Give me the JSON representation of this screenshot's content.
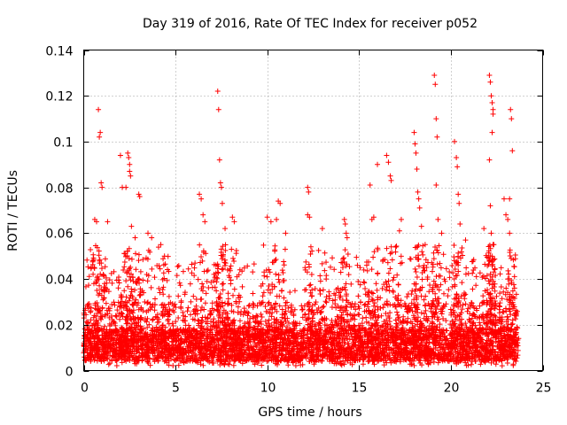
{
  "chart_data": {
    "type": "scatter",
    "title": "Day 319 of 2016, Rate Of TEC Index for receiver p052",
    "xlabel": "GPS time / hours",
    "ylabel": "ROTI / TECUs",
    "xlim": [
      0,
      25
    ],
    "ylim": [
      0,
      0.14
    ],
    "xticks": [
      0,
      5,
      10,
      15,
      20,
      25
    ],
    "xtick_labels": [
      "0",
      "5",
      "10",
      "15",
      "20",
      "25"
    ],
    "yticks": [
      0,
      0.02,
      0.04,
      0.06,
      0.08,
      0.1,
      0.12,
      0.14
    ],
    "ytick_labels": [
      "0",
      "0.02",
      "0.04",
      "0.06",
      "0.08",
      "0.1",
      "0.12",
      "0.14"
    ],
    "grid": true,
    "marker": "+",
    "color": "#ff0000",
    "series": [
      {
        "name": "p052",
        "points": [
          [
            0.6,
            0.066
          ],
          [
            0.7,
            0.065
          ],
          [
            0.8,
            0.114
          ],
          [
            0.85,
            0.102
          ],
          [
            0.9,
            0.104
          ],
          [
            0.95,
            0.082
          ],
          [
            1.0,
            0.08
          ],
          [
            1.3,
            0.065
          ],
          [
            2.0,
            0.094
          ],
          [
            2.1,
            0.08
          ],
          [
            2.3,
            0.08
          ],
          [
            2.4,
            0.095
          ],
          [
            2.45,
            0.093
          ],
          [
            2.5,
            0.09
          ],
          [
            2.5,
            0.087
          ],
          [
            2.55,
            0.085
          ],
          [
            2.6,
            0.063
          ],
          [
            2.8,
            0.058
          ],
          [
            3.0,
            0.077
          ],
          [
            3.05,
            0.076
          ],
          [
            3.5,
            0.06
          ],
          [
            3.7,
            0.058
          ],
          [
            4.2,
            0.055
          ],
          [
            4.4,
            0.05
          ],
          [
            6.3,
            0.077
          ],
          [
            6.4,
            0.075
          ],
          [
            6.5,
            0.068
          ],
          [
            6.6,
            0.065
          ],
          [
            7.3,
            0.122
          ],
          [
            7.35,
            0.114
          ],
          [
            7.4,
            0.092
          ],
          [
            7.45,
            0.082
          ],
          [
            7.5,
            0.08
          ],
          [
            7.55,
            0.073
          ],
          [
            7.7,
            0.062
          ],
          [
            8.1,
            0.067
          ],
          [
            8.2,
            0.065
          ],
          [
            10.0,
            0.067
          ],
          [
            10.2,
            0.065
          ],
          [
            10.5,
            0.066
          ],
          [
            10.6,
            0.074
          ],
          [
            10.7,
            0.073
          ],
          [
            11.0,
            0.06
          ],
          [
            12.2,
            0.08
          ],
          [
            12.25,
            0.078
          ],
          [
            12.2,
            0.068
          ],
          [
            12.3,
            0.067
          ],
          [
            13.0,
            0.062
          ],
          [
            14.2,
            0.066
          ],
          [
            14.25,
            0.064
          ],
          [
            14.3,
            0.06
          ],
          [
            14.35,
            0.058
          ],
          [
            15.6,
            0.081
          ],
          [
            15.7,
            0.066
          ],
          [
            15.8,
            0.067
          ],
          [
            16.0,
            0.09
          ],
          [
            16.5,
            0.094
          ],
          [
            16.6,
            0.091
          ],
          [
            16.7,
            0.085
          ],
          [
            16.75,
            0.083
          ],
          [
            17.2,
            0.061
          ],
          [
            17.3,
            0.066
          ],
          [
            18.0,
            0.104
          ],
          [
            18.05,
            0.099
          ],
          [
            18.1,
            0.095
          ],
          [
            18.15,
            0.088
          ],
          [
            18.2,
            0.078
          ],
          [
            18.25,
            0.075
          ],
          [
            18.3,
            0.071
          ],
          [
            18.4,
            0.063
          ],
          [
            18.6,
            0.055
          ],
          [
            19.1,
            0.129
          ],
          [
            19.15,
            0.125
          ],
          [
            19.2,
            0.11
          ],
          [
            19.25,
            0.102
          ],
          [
            19.2,
            0.081
          ],
          [
            19.3,
            0.066
          ],
          [
            19.5,
            0.06
          ],
          [
            20.2,
            0.1
          ],
          [
            20.3,
            0.093
          ],
          [
            20.35,
            0.089
          ],
          [
            20.4,
            0.077
          ],
          [
            20.45,
            0.073
          ],
          [
            20.5,
            0.064
          ],
          [
            20.8,
            0.057
          ],
          [
            21.8,
            0.062
          ],
          [
            22.1,
            0.129
          ],
          [
            22.15,
            0.126
          ],
          [
            22.2,
            0.12
          ],
          [
            22.25,
            0.117
          ],
          [
            22.3,
            0.114
          ],
          [
            22.3,
            0.112
          ],
          [
            22.25,
            0.104
          ],
          [
            22.1,
            0.092
          ],
          [
            22.15,
            0.072
          ],
          [
            22.2,
            0.06
          ],
          [
            22.3,
            0.055
          ],
          [
            22.9,
            0.075
          ],
          [
            23.0,
            0.068
          ],
          [
            23.1,
            0.066
          ],
          [
            23.2,
            0.075
          ],
          [
            23.25,
            0.114
          ],
          [
            23.3,
            0.11
          ],
          [
            23.35,
            0.096
          ],
          [
            23.2,
            0.06
          ]
        ],
        "dense_band": {
          "x_range": [
            0.0,
            23.7
          ],
          "y_floor": 0.002,
          "y_baseline_range": [
            0.004,
            0.018
          ],
          "y_peak_typical": 0.05
        }
      }
    ]
  }
}
